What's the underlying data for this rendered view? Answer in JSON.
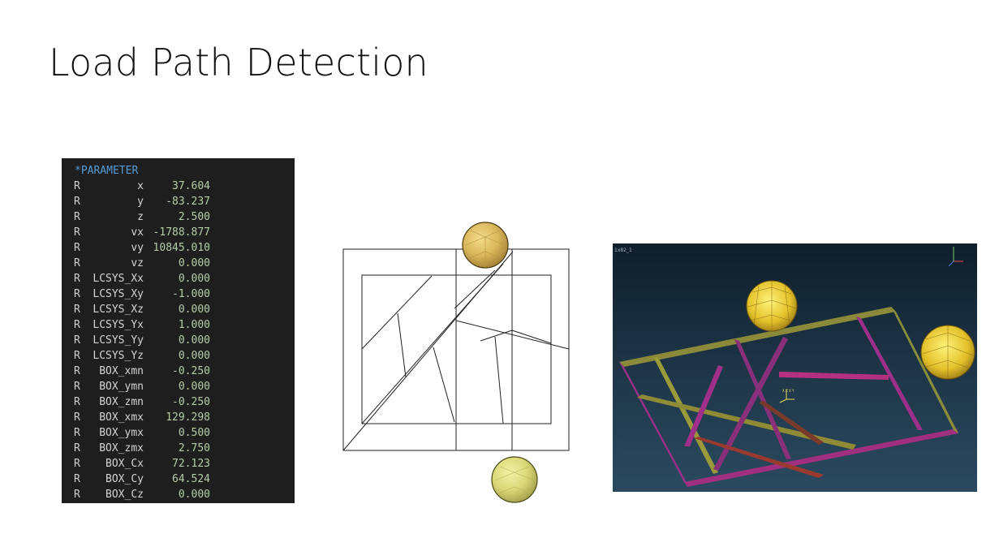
{
  "slide": {
    "title": "Load Path Detection"
  },
  "parameter_panel": {
    "header": "*PARAMETER",
    "rows": [
      {
        "type": "R",
        "name": "x",
        "value": "37.604"
      },
      {
        "type": "R",
        "name": "y",
        "value": "-83.237"
      },
      {
        "type": "R",
        "name": "z",
        "value": "2.500"
      },
      {
        "type": "R",
        "name": "vx",
        "value": "-1788.877"
      },
      {
        "type": "R",
        "name": "vy",
        "value": "10845.010"
      },
      {
        "type": "R",
        "name": "vz",
        "value": "0.000"
      },
      {
        "type": "R",
        "name": "LCSYS_Xx",
        "value": "0.000"
      },
      {
        "type": "R",
        "name": "LCSYS_Xy",
        "value": "-1.000"
      },
      {
        "type": "R",
        "name": "LCSYS_Xz",
        "value": "0.000"
      },
      {
        "type": "R",
        "name": "LCSYS_Yx",
        "value": "1.000"
      },
      {
        "type": "R",
        "name": "LCSYS_Yy",
        "value": "0.000"
      },
      {
        "type": "R",
        "name": "LCSYS_Yz",
        "value": "0.000"
      },
      {
        "type": "R",
        "name": "BOX_xmn",
        "value": "-0.250"
      },
      {
        "type": "R",
        "name": "BOX_ymn",
        "value": "0.000"
      },
      {
        "type": "R",
        "name": "BOX_zmn",
        "value": "-0.250"
      },
      {
        "type": "R",
        "name": "BOX_xmx",
        "value": "129.298"
      },
      {
        "type": "R",
        "name": "BOX_ymx",
        "value": "0.500"
      },
      {
        "type": "R",
        "name": "BOX_zmx",
        "value": "2.750"
      },
      {
        "type": "R",
        "name": "BOX_Cx",
        "value": "72.123"
      },
      {
        "type": "R",
        "name": "BOX_Cy",
        "value": "64.524"
      },
      {
        "type": "R",
        "name": "BOX_Cz",
        "value": "0.000"
      }
    ]
  },
  "render_view": {
    "corner_label": "1x82_1",
    "triad_label": "X Z\nX Y"
  },
  "colors": {
    "panel_bg": "#1e1e1e",
    "header": "#569cd6",
    "values": "#b5cea8",
    "sphere": "#e8c94a",
    "beam_magenta": "#b03a9a",
    "beam_olive": "#9a9a3a"
  }
}
